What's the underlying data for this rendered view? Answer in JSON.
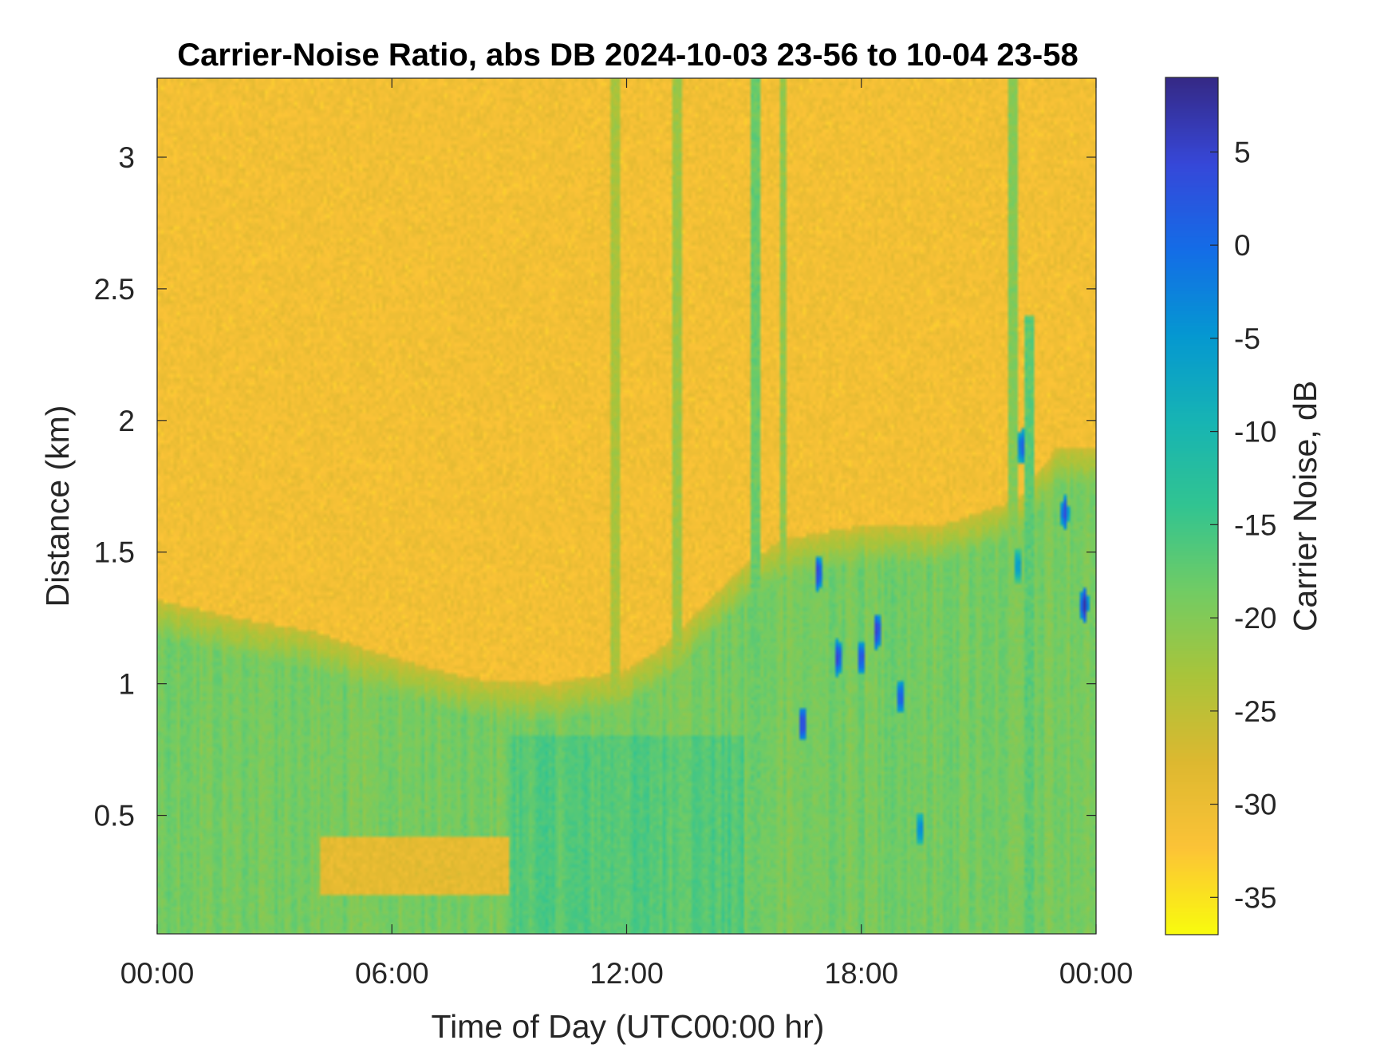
{
  "chart_data": {
    "type": "heatmap",
    "title": "Carrier-Noise Ratio, abs DB 2024-10-03 23-56 to 10-04 23-58",
    "xlabel": "Time of Day (UTC00:00 hr)",
    "ylabel": "Distance (km)",
    "xlim": [
      0,
      24
    ],
    "ylim": [
      0.05,
      3.3
    ],
    "x_ticks": [
      0,
      6,
      12,
      18,
      24
    ],
    "x_tick_labels": [
      "00:00",
      "06:00",
      "12:00",
      "18:00",
      "00:00"
    ],
    "y_ticks": [
      0.5,
      1,
      1.5,
      2,
      2.5,
      3
    ],
    "y_tick_labels": [
      "0.5",
      "1",
      "1.5",
      "2",
      "2.5",
      "3"
    ],
    "colorbar": {
      "label": "Carrier Noise, dB",
      "clim": [
        -37,
        9
      ],
      "ticks": [
        5,
        0,
        -5,
        -10,
        -15,
        -20,
        -25,
        -30,
        -35
      ],
      "tick_labels": [
        "5",
        "0",
        "-5",
        "-10",
        "-15",
        "-20",
        "-25",
        "-30",
        "-35"
      ],
      "colormap": "parula"
    },
    "field_description": {
      "background_clear_air_db": -31,
      "boundary_layer_db": -19,
      "boundary_layer_top_km": [
        [
          0,
          1.32
        ],
        [
          2,
          1.25
        ],
        [
          4,
          1.2
        ],
        [
          6,
          1.1
        ],
        [
          8,
          1.02
        ],
        [
          10,
          1.0
        ],
        [
          12,
          1.05
        ],
        [
          13,
          1.15
        ],
        [
          14,
          1.3
        ],
        [
          15,
          1.45
        ],
        [
          16,
          1.55
        ],
        [
          18,
          1.6
        ],
        [
          20,
          1.6
        ],
        [
          22,
          1.7
        ],
        [
          23,
          1.9
        ],
        [
          24,
          1.9
        ]
      ],
      "strong_echo_columns": [
        {
          "time_hr": 15.3,
          "top_km": 3.3,
          "db": -18
        },
        {
          "time_hr": 16.0,
          "top_km": 3.3,
          "db": -21
        },
        {
          "time_hr": 13.3,
          "top_km": 3.3,
          "db": -22
        },
        {
          "time_hr": 11.7,
          "top_km": 3.3,
          "db": -23
        },
        {
          "time_hr": 21.9,
          "top_km": 3.3,
          "db": -20
        },
        {
          "time_hr": 22.3,
          "top_km": 2.4,
          "db": -17
        }
      ],
      "high_echo_spots": [
        {
          "time_hr": 16.5,
          "distance_km": 0.85,
          "db": 6
        },
        {
          "time_hr": 17.4,
          "distance_km": 1.1,
          "db": 5
        },
        {
          "time_hr": 18.0,
          "distance_km": 1.1,
          "db": 4
        },
        {
          "time_hr": 18.4,
          "distance_km": 1.2,
          "db": 6
        },
        {
          "time_hr": 19.0,
          "distance_km": 0.95,
          "db": 3
        },
        {
          "time_hr": 19.5,
          "distance_km": 0.45,
          "db": -2
        },
        {
          "time_hr": 22.1,
          "distance_km": 1.9,
          "db": 2
        },
        {
          "time_hr": 22.0,
          "distance_km": 1.45,
          "db": -4
        },
        {
          "time_hr": 23.2,
          "distance_km": 1.65,
          "db": 4
        },
        {
          "time_hr": 23.7,
          "distance_km": 1.3,
          "db": 7
        },
        {
          "time_hr": 16.9,
          "distance_km": 1.42,
          "db": 5
        }
      ],
      "low_echo_region": {
        "time_hr": [
          4.2,
          9.0
        ],
        "distance_km": [
          0.2,
          0.42
        ],
        "db": -29
      }
    }
  }
}
